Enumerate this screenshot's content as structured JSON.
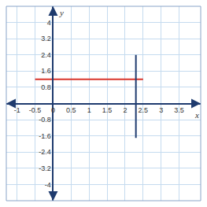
{
  "chart_data": {
    "type": "line",
    "x_label": "x",
    "y_label": "y",
    "series": [
      {
        "color": "#d9342b",
        "x": [
          -0.5,
          2.5
        ],
        "values": [
          1.2,
          1.2
        ]
      },
      {
        "color": "#1f3b6e",
        "x": [
          2.3,
          2.3
        ],
        "values": [
          -1.7,
          2.4
        ]
      }
    ],
    "xlim": [
      -1.3,
      4.1
    ],
    "xticks": [
      -1,
      -0.5,
      0,
      0.5,
      1,
      1.5,
      2,
      2.5,
      3,
      3.5
    ],
    "ylim": [
      -4.8,
      4.8
    ],
    "yticks": [
      -4,
      -3.2,
      -2.4,
      -1.6,
      -0.8,
      0.8,
      1.6,
      2.4,
      3.2,
      4
    ],
    "grid": true
  }
}
